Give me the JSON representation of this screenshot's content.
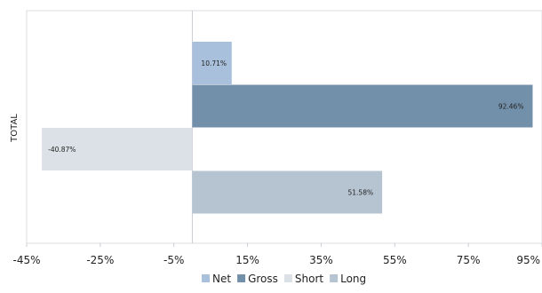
{
  "chart_data": {
    "type": "bar",
    "orientation": "horizontal",
    "categories": [
      "TOTAL"
    ],
    "series": [
      {
        "name": "Net",
        "values": [
          10.71
        ],
        "label": "10.71%",
        "color": "#a9c0dc"
      },
      {
        "name": "Gross",
        "values": [
          92.46
        ],
        "label": "92.46%",
        "color": "#7390aa"
      },
      {
        "name": "Short",
        "values": [
          -40.87
        ],
        "label": "-40.87%",
        "color": "#dce1e7"
      },
      {
        "name": "Long",
        "values": [
          51.58
        ],
        "label": "51.58%",
        "color": "#b6c4d2"
      }
    ],
    "xlim": [
      -45,
      95
    ],
    "xticks": [
      "-45%",
      "-25%",
      "-5%",
      "15%",
      "35%",
      "55%",
      "75%",
      "95%"
    ],
    "xtick_values": [
      -45,
      -25,
      -5,
      15,
      35,
      55,
      75,
      95
    ],
    "grid": false,
    "legend": "bottom",
    "title": "",
    "xlabel": "",
    "ylabel": ""
  }
}
